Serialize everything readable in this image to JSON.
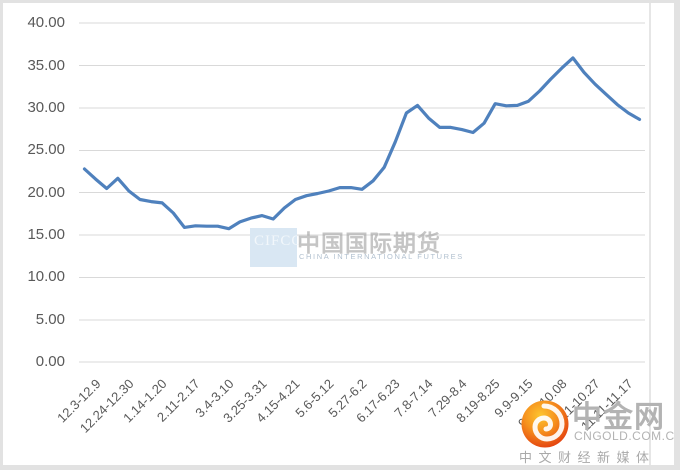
{
  "chart_data": {
    "type": "line",
    "title": "",
    "xlabel": "",
    "ylabel": "",
    "ylim": [
      0,
      40
    ],
    "ytick_step": 5,
    "y_tick_labels": [
      "40.00",
      "35.00",
      "30.00",
      "25.00",
      "20.00",
      "15.00",
      "10.00",
      "5.00",
      "0.00"
    ],
    "x_tick_labels": [
      "12.3-12.9",
      "12.24-12.30",
      "1.14-1.20",
      "2.11-2.17",
      "3.4-3.10",
      "3.25-3.31",
      "4.15-4.21",
      "5.6-5.12",
      "5.27-6.2",
      "6.17-6.23",
      "7.8-7.14",
      "7.29-8.4",
      "8.19-8.25",
      "9.9-9.15",
      "9.30-10.08",
      "10.21-10.27",
      "11.11-11.17"
    ],
    "x_label_every": 3,
    "grid": "horizontal-only",
    "legend": "none",
    "values": [
      22.8,
      21.6,
      20.5,
      21.7,
      20.2,
      19.2,
      18.95,
      18.8,
      17.6,
      15.9,
      16.1,
      16.05,
      16.05,
      15.75,
      16.55,
      17.0,
      17.3,
      16.9,
      18.2,
      19.2,
      19.65,
      19.9,
      20.2,
      20.6,
      20.6,
      20.4,
      21.4,
      23.0,
      26.0,
      29.4,
      30.3,
      28.8,
      27.7,
      27.7,
      27.45,
      27.1,
      28.2,
      30.5,
      30.25,
      30.3,
      30.8,
      32.0,
      33.4,
      34.7,
      35.9,
      34.2,
      32.8,
      31.6,
      30.4,
      29.4,
      28.65
    ]
  },
  "colors": {
    "line": "#4f81bd",
    "gridline": "#d9d9d9",
    "axis_text": "#595959",
    "watermark_square": "#d9e7f3",
    "site_text": "#b3b3b3",
    "logo_outer": "#e23a0e",
    "logo_inner": "#fdc52e"
  },
  "watermark_center": {
    "abbr": "CIFCO",
    "title": "中国国际期货",
    "subtitle": "CHINA INTERNATIONAL FUTURES"
  },
  "watermark_site": {
    "name": "中金网",
    "domain": "CNGOLD.COM.CN",
    "tagline": "中文财经新媒体"
  }
}
